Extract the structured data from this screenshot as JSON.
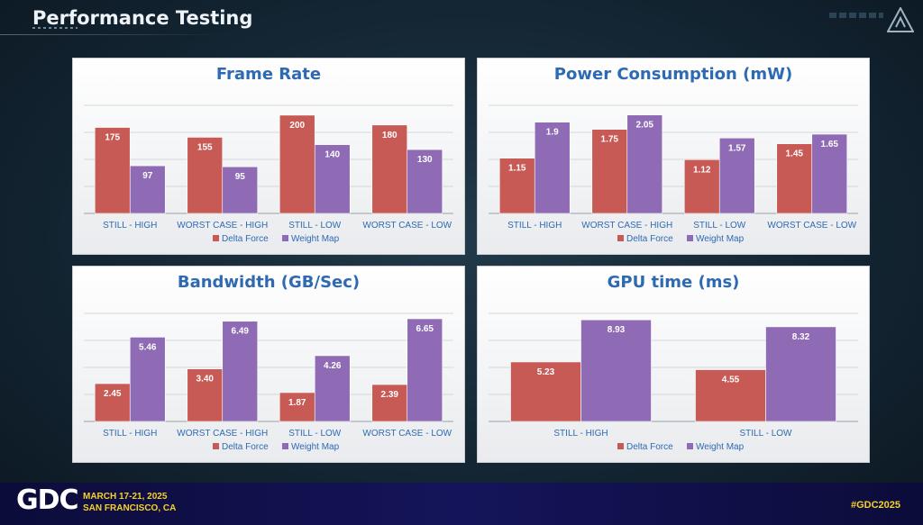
{
  "slide": {
    "title": "Performance Testing"
  },
  "colors": {
    "delta_force": "#c85a55",
    "weight_map": "#8e6bb4",
    "title_blue": "#2e6ab2",
    "accent_yellow": "#f4d22a"
  },
  "footer": {
    "logo": "GDC",
    "dates": "MARCH 17-21, 2025",
    "location": "SAN FRANCISCO, CA",
    "hashtag": "#GDC2025"
  },
  "chart_data": [
    {
      "id": "frame-rate",
      "type": "bar",
      "title": "Frame Rate",
      "categories": [
        "STILL - HIGH",
        "WORST CASE - HIGH",
        "STILL - LOW",
        "WORST CASE - LOW"
      ],
      "series": [
        {
          "name": "Delta Force",
          "values": [
            175,
            155,
            200,
            180
          ],
          "labels": [
            "175",
            "155",
            "200",
            "180"
          ]
        },
        {
          "name": "Weight Map",
          "values": [
            97,
            95,
            140,
            130
          ],
          "labels": [
            "97",
            "95",
            "140",
            "130"
          ]
        }
      ],
      "ylim": [
        0,
        220
      ],
      "gridlines": 4,
      "legend": "bottom"
    },
    {
      "id": "power",
      "type": "bar",
      "title": "Power Consumption (mW)",
      "categories": [
        "STILL - HIGH",
        "WORST CASE - HIGH",
        "STILL - LOW",
        "WORST CASE - LOW"
      ],
      "series": [
        {
          "name": "Delta Force",
          "values": [
            1.15,
            1.75,
            1.12,
            1.45
          ],
          "labels": [
            "1.15",
            "1.75",
            "1.12",
            "1.45"
          ]
        },
        {
          "name": "Weight Map",
          "values": [
            1.9,
            2.05,
            1.57,
            1.65
          ],
          "labels": [
            "1.9",
            "2.05",
            "1.57",
            "1.65"
          ]
        }
      ],
      "ylim": [
        0,
        2.25
      ],
      "gridlines": 4,
      "legend": "bottom"
    },
    {
      "id": "bandwidth",
      "type": "bar",
      "title": "Bandwidth (GB/Sec)",
      "categories": [
        "STILL - HIGH",
        "WORST CASE - HIGH",
        "STILL - LOW",
        "WORST CASE - LOW"
      ],
      "series": [
        {
          "name": "Delta Force",
          "values": [
            2.45,
            3.4,
            1.87,
            2.39
          ],
          "labels": [
            "2.45",
            "3.40",
            "1.87",
            "2.39"
          ]
        },
        {
          "name": "Weight Map",
          "values": [
            5.46,
            6.49,
            4.26,
            6.65
          ],
          "labels": [
            "5.46",
            "6.49",
            "4.26",
            "6.65"
          ]
        }
      ],
      "ylim": [
        0,
        7
      ],
      "gridlines": 4,
      "legend": "bottom"
    },
    {
      "id": "gpu",
      "type": "bar",
      "title": "GPU time (ms)",
      "categories": [
        "STILL - HIGH",
        "STILL - LOW"
      ],
      "series": [
        {
          "name": "Delta Force",
          "values": [
            5.23,
            4.55
          ],
          "labels": [
            "5.23",
            "4.55"
          ]
        },
        {
          "name": "Weight Map",
          "values": [
            8.93,
            8.32
          ],
          "labels": [
            "8.93",
            "8.32"
          ]
        }
      ],
      "ylim": [
        0,
        9.5
      ],
      "gridlines": 4,
      "legend": "bottom"
    }
  ]
}
